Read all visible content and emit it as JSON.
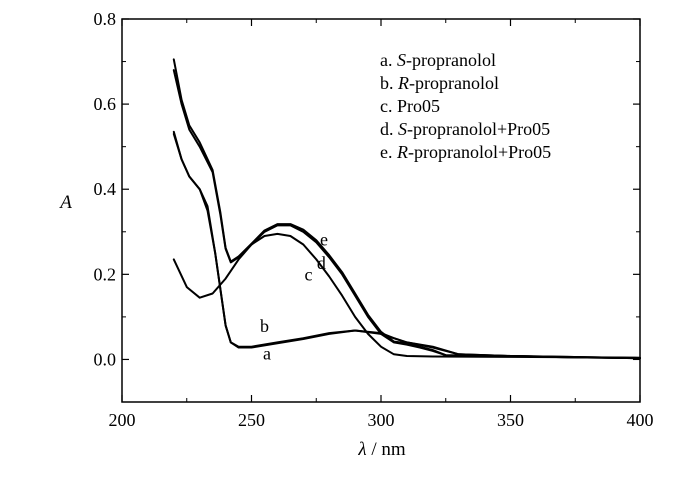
{
  "chart_data": {
    "type": "line",
    "xlabel": {
      "symbol": "λ",
      "unit": " / nm"
    },
    "ylabel": "A",
    "xlim": [
      200,
      400
    ],
    "ylim": [
      -0.1,
      0.8
    ],
    "xticks": [
      200,
      250,
      300,
      350,
      400
    ],
    "yticks": [
      0.0,
      0.2,
      0.4,
      0.6,
      0.8
    ],
    "xtick_labels": [
      "200",
      "250",
      "300",
      "350",
      "400"
    ],
    "ytick_labels": [
      "0.0",
      "0.2",
      "0.4",
      "0.6",
      "0.8"
    ],
    "grid": false,
    "legend_position": "top-right",
    "legend": [
      {
        "prefix": "a. ",
        "italic": "S",
        "rest": "-propranolol"
      },
      {
        "prefix": "b. ",
        "italic": "R",
        "rest": "-propranolol"
      },
      {
        "prefix": "c. ",
        "italic": "",
        "rest": "Pro05"
      },
      {
        "prefix": "d. ",
        "italic": "S",
        "rest": "-propranolol+Pro05"
      },
      {
        "prefix": "e. ",
        "italic": "R",
        "rest": "-propranolol+Pro05"
      }
    ],
    "series": [
      {
        "name": "a",
        "x": [
          220,
          223,
          226,
          230,
          233,
          236,
          240,
          242,
          245,
          250,
          260,
          270,
          280,
          290,
          300,
          305,
          310,
          320,
          330,
          350,
          372,
          400
        ],
        "y": [
          0.535,
          0.47,
          0.43,
          0.4,
          0.36,
          0.25,
          0.08,
          0.04,
          0.028,
          0.028,
          0.038,
          0.048,
          0.06,
          0.068,
          0.06,
          0.05,
          0.04,
          0.03,
          0.012,
          0.008,
          0.005,
          0.003
        ]
      },
      {
        "name": "b",
        "x": [
          220,
          223,
          226,
          230,
          233,
          236,
          240,
          242,
          245,
          250,
          260,
          270,
          280,
          290,
          300,
          305,
          310,
          320,
          330,
          350,
          372,
          400
        ],
        "y": [
          0.53,
          0.47,
          0.43,
          0.4,
          0.35,
          0.25,
          0.08,
          0.04,
          0.03,
          0.03,
          0.04,
          0.05,
          0.062,
          0.068,
          0.062,
          0.05,
          0.04,
          0.028,
          0.012,
          0.008,
          0.005,
          0.003
        ]
      },
      {
        "name": "c",
        "x": [
          220,
          225,
          230,
          235,
          240,
          245,
          250,
          255,
          260,
          265,
          270,
          275,
          280,
          285,
          290,
          295,
          300,
          305,
          310,
          320,
          350,
          400
        ],
        "y": [
          0.235,
          0.17,
          0.145,
          0.155,
          0.19,
          0.235,
          0.27,
          0.29,
          0.295,
          0.29,
          0.27,
          0.235,
          0.195,
          0.15,
          0.1,
          0.06,
          0.03,
          0.012,
          0.008,
          0.007,
          0.006,
          0.004
        ]
      },
      {
        "name": "d",
        "x": [
          220,
          223,
          226,
          230,
          235,
          238,
          240,
          242,
          245,
          250,
          255,
          260,
          265,
          270,
          275,
          280,
          285,
          290,
          295,
          300,
          305,
          310,
          315,
          320,
          325,
          350,
          372,
          400
        ],
        "y": [
          0.68,
          0.6,
          0.54,
          0.5,
          0.44,
          0.34,
          0.26,
          0.228,
          0.24,
          0.27,
          0.3,
          0.315,
          0.315,
          0.3,
          0.275,
          0.24,
          0.2,
          0.15,
          0.1,
          0.06,
          0.04,
          0.035,
          0.028,
          0.02,
          0.01,
          0.008,
          0.006,
          0.003
        ]
      },
      {
        "name": "e",
        "x": [
          220,
          223,
          226,
          230,
          235,
          238,
          240,
          242,
          245,
          250,
          255,
          260,
          265,
          270,
          275,
          280,
          285,
          290,
          295,
          300,
          305,
          310,
          315,
          320,
          325,
          350,
          372,
          400
        ],
        "y": [
          0.705,
          0.61,
          0.55,
          0.51,
          0.445,
          0.345,
          0.262,
          0.23,
          0.242,
          0.272,
          0.303,
          0.318,
          0.318,
          0.305,
          0.28,
          0.245,
          0.205,
          0.155,
          0.105,
          0.065,
          0.042,
          0.038,
          0.03,
          0.022,
          0.01,
          0.008,
          0.006,
          0.003
        ]
      }
    ],
    "curve_labels": [
      {
        "text": "a",
        "x": 256,
        "y": 0.0
      },
      {
        "text": "b",
        "x": 255,
        "y": 0.065
      },
      {
        "text": "c",
        "x": 272,
        "y": 0.185
      },
      {
        "text": "d",
        "x": 277,
        "y": 0.213
      },
      {
        "text": "e",
        "x": 278,
        "y": 0.268
      }
    ]
  }
}
